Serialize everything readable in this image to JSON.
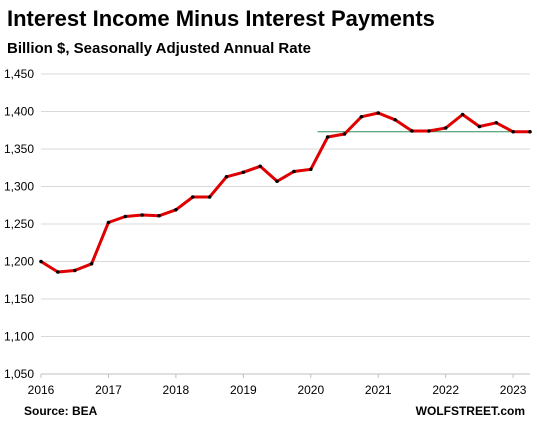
{
  "chart_data": {
    "type": "line",
    "title": "Interest Income Minus Interest Payments",
    "subtitle": "Billion $, Seasonally Adjusted Annual Rate",
    "xlabel": "",
    "ylabel": "",
    "ylim": [
      1050,
      1450
    ],
    "xlim": [
      2016,
      2023.25
    ],
    "yticks": [
      1050,
      1100,
      1150,
      1200,
      1250,
      1300,
      1350,
      1400,
      1450
    ],
    "ytick_labels": [
      "1,050",
      "1,100",
      "1,150",
      "1,200",
      "1,250",
      "1,300",
      "1,350",
      "1,400",
      "1,450"
    ],
    "xticks": [
      2016,
      2017,
      2018,
      2019,
      2020,
      2021,
      2022,
      2023
    ],
    "xtick_labels": [
      "2016",
      "2017",
      "2018",
      "2019",
      "2020",
      "2021",
      "2022",
      "2023"
    ],
    "grid": true,
    "series": [
      {
        "color": "#e00000",
        "x": [
          2016.0,
          2016.25,
          2016.5,
          2016.75,
          2017.0,
          2017.25,
          2017.5,
          2017.75,
          2018.0,
          2018.25,
          2018.5,
          2018.75,
          2019.0,
          2019.25,
          2019.5,
          2019.75,
          2020.0,
          2020.25,
          2020.5,
          2020.75,
          2021.0,
          2021.25,
          2021.5,
          2021.75,
          2022.0,
          2022.25,
          2022.5,
          2022.75,
          2023.0,
          2023.25
        ],
        "y": [
          1200,
          1186,
          1188,
          1197,
          1252,
          1260,
          1262,
          1261,
          1269,
          1286,
          1286,
          1313,
          1319,
          1327,
          1307,
          1320,
          1323,
          1366,
          1370,
          1393,
          1398,
          1389,
          1374,
          1374,
          1378,
          1396,
          1380,
          1385,
          1373,
          1373
        ]
      }
    ],
    "reference_line": {
      "y": 1373,
      "x_start": 2020.1,
      "x_end": 2023.25,
      "color": "#2e8b57"
    }
  },
  "labels": {
    "title": "Interest Income Minus Interest Payments",
    "subtitle": "Billion $, Seasonally Adjusted Annual Rate",
    "source": "Source: BEA",
    "brand": "WOLFSTREET.com"
  }
}
